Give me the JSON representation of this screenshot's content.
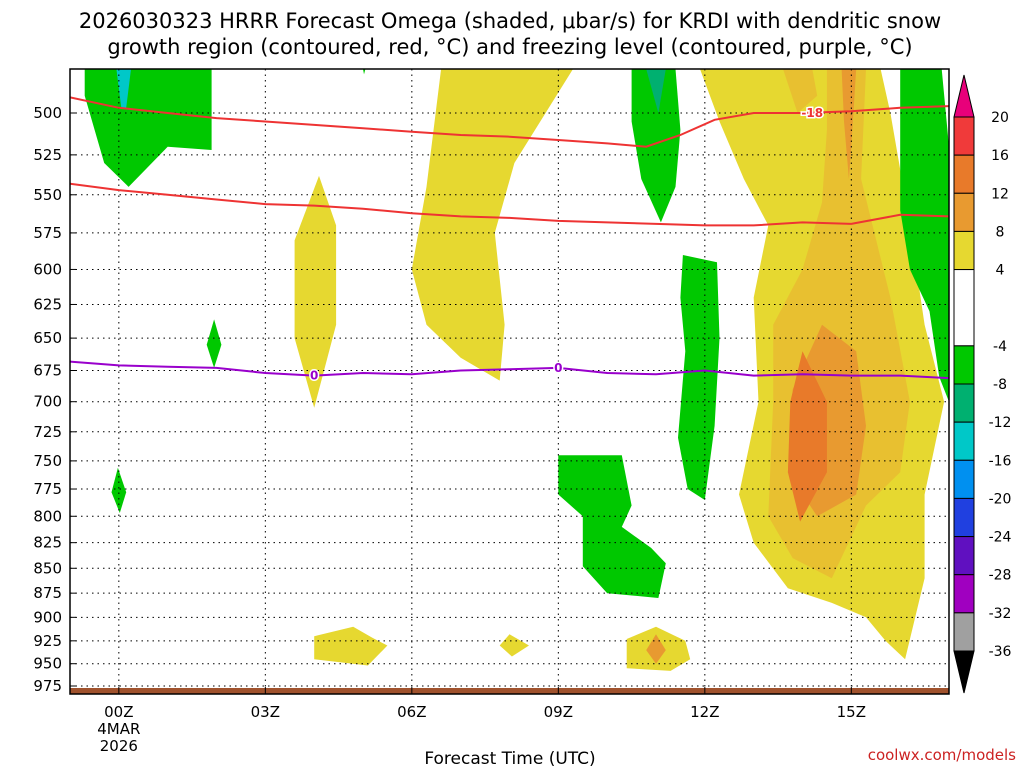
{
  "colors": {
    "pos4": "#e6d830",
    "pos8": "#e8c030",
    "pos12": "#e89a30",
    "pos16": "#e87a2a",
    "neg4": "#00c800",
    "neg8": "#00b070",
    "neg12": "#00c8c8",
    "dgz": "#ee3333",
    "freezing": "#9900cc",
    "ground": "#a0522d"
  },
  "chart_data": {
    "type": "heatmap",
    "title_line1": "2026030323 HRRR Forecast Omega (shaded, μbar/s) for KRDI with dendritic snow",
    "title_line2": "growth region (contoured, red, °C) and freezing level (contoured, purple, °C)",
    "xlabel": "Forecast Time (UTC)",
    "credit": "coolwx.com/models",
    "x_range_hours": [
      -1,
      17
    ],
    "x_ticks": [
      {
        "hour": 0,
        "label": "00Z",
        "sub1": "4MAR",
        "sub2": "2026"
      },
      {
        "hour": 3,
        "label": "03Z",
        "sub1": "",
        "sub2": ""
      },
      {
        "hour": 6,
        "label": "06Z",
        "sub1": "",
        "sub2": ""
      },
      {
        "hour": 9,
        "label": "09Z",
        "sub1": "",
        "sub2": ""
      },
      {
        "hour": 12,
        "label": "12Z",
        "sub1": "",
        "sub2": ""
      },
      {
        "hour": 15,
        "label": "15Z",
        "sub1": "",
        "sub2": ""
      }
    ],
    "y_ticks": [
      500,
      525,
      550,
      575,
      600,
      625,
      650,
      675,
      700,
      725,
      750,
      775,
      800,
      825,
      850,
      875,
      900,
      925,
      950,
      975
    ],
    "y_range_mb": [
      475,
      975
    ],
    "colorbar": {
      "levels": [
        "20",
        "16",
        "12",
        "8",
        "4",
        "-4",
        "-8",
        "-12",
        "-16",
        "-20",
        "-24",
        "-28",
        "-32",
        "-36"
      ],
      "bins": [
        {
          "from": 16,
          "to": 20,
          "color": "#f03a3a"
        },
        {
          "from": 12,
          "to": 16,
          "color": "#e87a2a"
        },
        {
          "from": 8,
          "to": 12,
          "color": "#e89a30"
        },
        {
          "from": 4,
          "to": 8,
          "color": "#e6d830"
        },
        {
          "from": -4,
          "to": 4,
          "color": "#ffffff"
        },
        {
          "from": -8,
          "to": -4,
          "color": "#00c800"
        },
        {
          "from": -12,
          "to": -8,
          "color": "#00b070"
        },
        {
          "from": -16,
          "to": -12,
          "color": "#00c8c8"
        },
        {
          "from": -20,
          "to": -16,
          "color": "#0090f0"
        },
        {
          "from": -24,
          "to": -20,
          "color": "#2040e0"
        },
        {
          "from": -28,
          "to": -24,
          "color": "#6010c0"
        },
        {
          "from": -32,
          "to": -28,
          "color": "#a000c0"
        },
        {
          "from": -36,
          "to": -32,
          "color": "#a0a0a0"
        }
      ],
      "top_cap": "#e8007a",
      "bottom_cap": "#000000"
    },
    "series": [
      {
        "name": "dgz_upper_-18C",
        "label": "-18",
        "label_at": {
          "hour": 14.2,
          "mb": 500
        },
        "points": [
          [
            -1,
            491
          ],
          [
            0,
            497
          ],
          [
            1,
            500
          ],
          [
            2,
            503
          ],
          [
            3,
            505
          ],
          [
            4,
            507
          ],
          [
            5,
            509
          ],
          [
            6,
            511
          ],
          [
            7,
            513
          ],
          [
            8,
            514
          ],
          [
            9,
            516
          ],
          [
            10,
            518
          ],
          [
            10.8,
            520
          ],
          [
            11.5,
            513
          ],
          [
            12.2,
            504
          ],
          [
            13,
            500
          ],
          [
            14,
            500
          ],
          [
            15,
            499
          ],
          [
            16,
            497
          ],
          [
            17,
            496
          ]
        ]
      },
      {
        "name": "dgz_lower_-12C",
        "label": "",
        "points": [
          [
            -1,
            543
          ],
          [
            0,
            547
          ],
          [
            1,
            550
          ],
          [
            2,
            553
          ],
          [
            3,
            556
          ],
          [
            4,
            557
          ],
          [
            5,
            559
          ],
          [
            6,
            562
          ],
          [
            7,
            564
          ],
          [
            8,
            565
          ],
          [
            9,
            567
          ],
          [
            10,
            568
          ],
          [
            11,
            569
          ],
          [
            12,
            570
          ],
          [
            13,
            570
          ],
          [
            14,
            568
          ],
          [
            15,
            569
          ],
          [
            16,
            563
          ],
          [
            17,
            564
          ]
        ]
      },
      {
        "name": "freezing_level_0C",
        "label": "0",
        "label_at": [
          {
            "hour": 4,
            "mb": 679
          },
          {
            "hour": 9,
            "mb": 673
          }
        ],
        "points": [
          [
            -1,
            668
          ],
          [
            0,
            671
          ],
          [
            1,
            672
          ],
          [
            2,
            673
          ],
          [
            3,
            677
          ],
          [
            4,
            679
          ],
          [
            5,
            677
          ],
          [
            6,
            678
          ],
          [
            7,
            675
          ],
          [
            8,
            674
          ],
          [
            9,
            673
          ],
          [
            10,
            677
          ],
          [
            11,
            678
          ],
          [
            12,
            675
          ],
          [
            13,
            679
          ],
          [
            14,
            678
          ],
          [
            15,
            679
          ],
          [
            16,
            679
          ],
          [
            17,
            681
          ]
        ]
      }
    ],
    "shaded_regions": [
      {
        "class": "neg4",
        "points": [
          [
            -0.7,
            475
          ],
          [
            1.9,
            475
          ],
          [
            1.9,
            522
          ],
          [
            1,
            520
          ],
          [
            0.2,
            545
          ],
          [
            -0.3,
            530
          ],
          [
            -0.7,
            490
          ]
        ]
      },
      {
        "class": "neg12",
        "points": [
          [
            -0.05,
            475
          ],
          [
            0.25,
            475
          ],
          [
            0.15,
            497
          ],
          [
            0.05,
            497
          ]
        ]
      },
      {
        "class": "neg4",
        "points": [
          [
            1.95,
            636
          ],
          [
            2.1,
            655
          ],
          [
            1.95,
            673
          ],
          [
            1.8,
            655
          ]
        ]
      },
      {
        "class": "neg4",
        "points": [
          [
            -0.02,
            756
          ],
          [
            0.15,
            778
          ],
          [
            0.02,
            797
          ],
          [
            -0.15,
            778
          ]
        ]
      },
      {
        "class": "neg4",
        "points": [
          [
            5,
            475
          ],
          [
            5.05,
            475
          ],
          [
            5.02,
            478
          ]
        ]
      },
      {
        "class": "pos4",
        "points": [
          [
            6.6,
            475
          ],
          [
            9.3,
            475
          ],
          [
            8.1,
            530
          ],
          [
            7.7,
            575
          ],
          [
            7.9,
            640
          ],
          [
            7.8,
            683
          ],
          [
            7,
            665
          ],
          [
            6.3,
            640
          ],
          [
            6.0,
            600
          ],
          [
            6.3,
            545
          ]
        ]
      },
      {
        "class": "pos4",
        "points": [
          [
            4.1,
            538
          ],
          [
            4.45,
            570
          ],
          [
            4.45,
            640
          ],
          [
            4.0,
            705
          ],
          [
            3.6,
            650
          ],
          [
            3.6,
            580
          ]
        ]
      },
      {
        "class": "neg4",
        "points": [
          [
            10.5,
            475
          ],
          [
            11.4,
            475
          ],
          [
            11.5,
            510
          ],
          [
            11.4,
            545
          ],
          [
            11.1,
            568
          ],
          [
            10.7,
            540
          ],
          [
            10.5,
            505
          ]
        ]
      },
      {
        "class": "neg8",
        "points": [
          [
            10.8,
            475
          ],
          [
            11.2,
            475
          ],
          [
            11.05,
            500
          ]
        ]
      },
      {
        "class": "pos4",
        "points": [
          [
            11.9,
            475
          ],
          [
            15.6,
            475
          ],
          [
            15.8,
            500
          ],
          [
            16.2,
            570
          ],
          [
            16.5,
            640
          ],
          [
            16.9,
            700
          ],
          [
            16.5,
            780
          ],
          [
            16.5,
            860
          ],
          [
            16.1,
            945
          ],
          [
            15.7,
            925
          ],
          [
            15.3,
            900
          ],
          [
            14.6,
            885
          ],
          [
            13.7,
            870
          ],
          [
            13,
            825
          ],
          [
            12.7,
            780
          ],
          [
            13.1,
            700
          ],
          [
            13,
            620
          ],
          [
            13.3,
            570
          ],
          [
            12.8,
            540
          ],
          [
            12.3,
            505
          ]
        ]
      },
      {
        "class": "pos8",
        "points": [
          [
            13.6,
            475
          ],
          [
            14.2,
            475
          ],
          [
            14.3,
            490
          ],
          [
            13.9,
            500
          ]
        ]
      },
      {
        "class": "pos8",
        "points": [
          [
            14.5,
            475
          ],
          [
            15.3,
            475
          ],
          [
            15.2,
            540
          ],
          [
            15.8,
            620
          ],
          [
            16.2,
            700
          ],
          [
            16.0,
            760
          ],
          [
            15.3,
            790
          ],
          [
            14.6,
            860
          ],
          [
            13.8,
            840
          ],
          [
            13.3,
            800
          ],
          [
            13.4,
            700
          ],
          [
            13.4,
            640
          ],
          [
            14,
            600
          ],
          [
            14.4,
            555
          ],
          [
            14.5,
            510
          ]
        ]
      },
      {
        "class": "pos12",
        "points": [
          [
            14.8,
            475
          ],
          [
            15.1,
            475
          ],
          [
            15.0,
            520
          ],
          [
            14.95,
            540
          ],
          [
            14.85,
            505
          ]
        ]
      },
      {
        "class": "pos12",
        "points": [
          [
            14.4,
            640
          ],
          [
            15.1,
            660
          ],
          [
            15.3,
            720
          ],
          [
            15.1,
            780
          ],
          [
            14.3,
            800
          ],
          [
            13.7,
            760
          ],
          [
            13.8,
            690
          ]
        ]
      },
      {
        "class": "pos16",
        "points": [
          [
            14.0,
            660
          ],
          [
            14.5,
            700
          ],
          [
            14.5,
            760
          ],
          [
            13.95,
            805
          ],
          [
            13.7,
            760
          ],
          [
            13.75,
            700
          ]
        ]
      },
      {
        "class": "neg4",
        "points": [
          [
            11.55,
            590
          ],
          [
            12.25,
            595
          ],
          [
            12.3,
            650
          ],
          [
            12.2,
            720
          ],
          [
            12.0,
            785
          ],
          [
            11.65,
            775
          ],
          [
            11.45,
            730
          ],
          [
            11.6,
            660
          ],
          [
            11.5,
            620
          ]
        ]
      },
      {
        "class": "neg4",
        "points": [
          [
            16,
            475
          ],
          [
            16.85,
            475
          ],
          [
            17,
            520
          ],
          [
            17,
            700
          ],
          [
            16.8,
            680
          ],
          [
            16.6,
            630
          ],
          [
            16.2,
            600
          ],
          [
            16.0,
            560
          ],
          [
            16.0,
            520
          ]
        ]
      },
      {
        "class": "neg4",
        "points": [
          [
            9,
            745
          ],
          [
            10.3,
            745
          ],
          [
            10.5,
            790
          ],
          [
            10.3,
            810
          ],
          [
            10.9,
            830
          ],
          [
            11.2,
            845
          ],
          [
            11.05,
            880
          ],
          [
            10.0,
            875
          ],
          [
            9.5,
            848
          ],
          [
            9.5,
            800
          ],
          [
            9.0,
            780
          ]
        ]
      },
      {
        "class": "pos4",
        "points": [
          [
            4,
            920
          ],
          [
            4.8,
            910
          ],
          [
            5.2,
            922
          ],
          [
            5.5,
            930
          ],
          [
            5.1,
            952
          ],
          [
            4.0,
            945
          ]
        ]
      },
      {
        "class": "pos4",
        "points": [
          [
            8.0,
            918
          ],
          [
            8.4,
            930
          ],
          [
            8.05,
            942
          ],
          [
            7.8,
            930
          ]
        ]
      },
      {
        "class": "pos4",
        "points": [
          [
            10.4,
            923
          ],
          [
            11,
            910
          ],
          [
            11.6,
            925
          ],
          [
            11.7,
            945
          ],
          [
            11.3,
            958
          ],
          [
            10.4,
            955
          ]
        ]
      },
      {
        "class": "pos12",
        "points": [
          [
            11.0,
            918
          ],
          [
            11.2,
            935
          ],
          [
            11.0,
            950
          ],
          [
            10.8,
            935
          ]
        ]
      }
    ]
  }
}
